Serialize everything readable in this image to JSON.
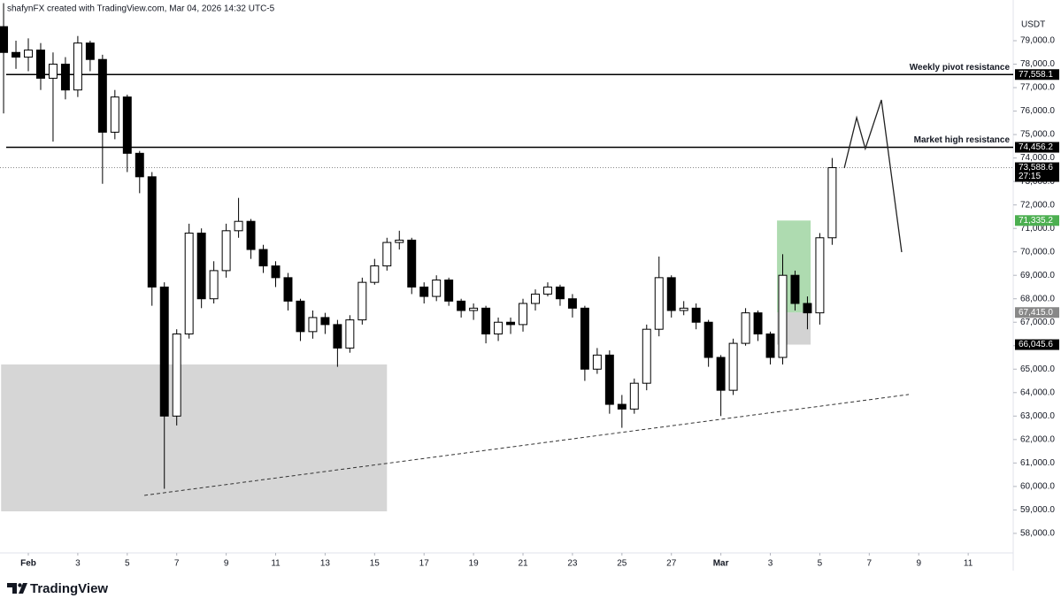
{
  "header": "shafynFX created with TradingView.com, Mar 04, 2026 14:32 UTC-5",
  "brand": "TradingView",
  "chart_data": {
    "type": "candlestick",
    "currency": "USDT",
    "xlim": [
      -1.145,
      39.82
    ],
    "ylim": [
      57167,
      80735
    ],
    "xticks": [
      {
        "value": 0,
        "label": "Feb"
      },
      {
        "value": 2,
        "label": "3"
      },
      {
        "value": 4,
        "label": "5"
      },
      {
        "value": 6,
        "label": "7"
      },
      {
        "value": 8,
        "label": "9"
      },
      {
        "value": 10,
        "label": "11"
      },
      {
        "value": 12,
        "label": "13"
      },
      {
        "value": 14,
        "label": "15"
      },
      {
        "value": 16,
        "label": "17"
      },
      {
        "value": 18,
        "label": "19"
      },
      {
        "value": 20,
        "label": "21"
      },
      {
        "value": 22,
        "label": "23"
      },
      {
        "value": 24,
        "label": "25"
      },
      {
        "value": 26,
        "label": "27"
      },
      {
        "value": 28,
        "label": "Mar"
      },
      {
        "value": 30,
        "label": "3"
      },
      {
        "value": 32,
        "label": "5"
      },
      {
        "value": 34,
        "label": "7"
      },
      {
        "value": 36,
        "label": "9"
      },
      {
        "value": 38,
        "label": "11"
      }
    ],
    "yticks": [
      {
        "value": 58000,
        "label": "58,000.0"
      },
      {
        "value": 59000,
        "label": "59,000.0"
      },
      {
        "value": 60000,
        "label": "60,000.0"
      },
      {
        "value": 61000,
        "label": "61,000.0"
      },
      {
        "value": 62000,
        "label": "62,000.0"
      },
      {
        "value": 63000,
        "label": "63,000.0"
      },
      {
        "value": 64000,
        "label": "64,000.0"
      },
      {
        "value": 65000,
        "label": "65,000.0"
      },
      {
        "value": 66000,
        "label": "66,000.0"
      },
      {
        "value": 67000,
        "label": "67,000.0"
      },
      {
        "value": 68000,
        "label": "68,000.0"
      },
      {
        "value": 69000,
        "label": "69,000.0"
      },
      {
        "value": 70000,
        "label": "70,000.0"
      },
      {
        "value": 71000,
        "label": "71,000.0"
      },
      {
        "value": 72000,
        "label": "72,000.0"
      },
      {
        "value": 73000,
        "label": "73,000.0"
      },
      {
        "value": 74000,
        "label": "74,000.0"
      },
      {
        "value": 75000,
        "label": "75,000.0"
      },
      {
        "value": 76000,
        "label": "76,000.0"
      },
      {
        "value": 77000,
        "label": "77,000.0"
      },
      {
        "value": 78000,
        "label": "78,000.0"
      },
      {
        "value": 79000,
        "label": "79,000.0"
      }
    ],
    "up_color": "#ffffff",
    "down_color": "#000000",
    "x": [
      -1,
      -0.5,
      0,
      0.5,
      1,
      1.5,
      2,
      2.5,
      3,
      3.5,
      4,
      4.5,
      5,
      5.5,
      6,
      6.5,
      7,
      7.5,
      8,
      8.5,
      9,
      9.5,
      10,
      10.5,
      11,
      11.5,
      12,
      12.5,
      13,
      13.5,
      14,
      14.5,
      15,
      15.5,
      16,
      16.5,
      17,
      17.5,
      18,
      18.5,
      19,
      19.5,
      20,
      20.5,
      21,
      21.5,
      22,
      22.5,
      23,
      23.5,
      24,
      24.5,
      25,
      25.5,
      26,
      26.5,
      27,
      27.5,
      28,
      28.5,
      29,
      29.5,
      30,
      30.5,
      31,
      31.5,
      32,
      32.5
    ],
    "open": [
      79600,
      78500,
      78300,
      78600,
      77400,
      78000,
      76900,
      78900,
      78200,
      75100,
      76600,
      74200,
      73200,
      68500,
      63000,
      66500,
      70800,
      68000,
      69200,
      70900,
      71300,
      70100,
      69400,
      68900,
      67900,
      66600,
      67200,
      66900,
      65900,
      67100,
      68700,
      69400,
      70400,
      70500,
      68500,
      68100,
      68800,
      67900,
      67500,
      67600,
      66500,
      67000,
      66900,
      67800,
      68200,
      68500,
      68000,
      67600,
      65000,
      65600,
      63500,
      63300,
      64400,
      66700,
      68900,
      67500,
      67600,
      67000,
      65500,
      64100,
      66100,
      67400,
      66500,
      65500,
      69000,
      67800,
      67400,
      70600
    ],
    "high": [
      80600,
      79000,
      79100,
      78900,
      78500,
      78300,
      79200,
      79000,
      78400,
      76900,
      76700,
      74300,
      73400,
      68700,
      66700,
      71200,
      71000,
      69600,
      71200,
      72300,
      71400,
      70300,
      69600,
      69100,
      68000,
      67500,
      67400,
      67100,
      67300,
      68900,
      69700,
      70600,
      70900,
      70600,
      68700,
      69000,
      68900,
      68000,
      67800,
      67700,
      67200,
      67200,
      68000,
      68400,
      68700,
      68600,
      68200,
      67700,
      65900,
      65800,
      63900,
      64600,
      66900,
      69800,
      69000,
      67900,
      67800,
      67100,
      65600,
      66300,
      67600,
      67500,
      66600,
      69900,
      69200,
      68100,
      70800,
      74000
    ],
    "low": [
      75900,
      77800,
      77700,
      76900,
      74700,
      76500,
      76600,
      77700,
      72900,
      74800,
      73400,
      72500,
      67700,
      59900,
      62600,
      66300,
      67600,
      67800,
      68900,
      70600,
      69700,
      69100,
      68500,
      67500,
      66200,
      66300,
      66500,
      65100,
      65700,
      66900,
      68600,
      69200,
      70100,
      68200,
      67800,
      67900,
      67700,
      67200,
      67100,
      66100,
      66200,
      66500,
      66600,
      67500,
      68100,
      67700,
      67200,
      64500,
      64800,
      63100,
      62500,
      63100,
      64100,
      66400,
      67200,
      67300,
      66700,
      65100,
      63000,
      63900,
      66000,
      66200,
      65200,
      65200,
      67500,
      66700,
      66900,
      70300
    ],
    "close": [
      78500,
      78300,
      78600,
      77400,
      78000,
      76900,
      78900,
      78200,
      75100,
      76600,
      74200,
      73200,
      68500,
      63000,
      66500,
      70800,
      68000,
      69200,
      70900,
      71300,
      70100,
      69400,
      68900,
      67900,
      66600,
      67200,
      66900,
      65900,
      67100,
      68700,
      69400,
      70400,
      70500,
      68500,
      68100,
      68800,
      67900,
      67500,
      67600,
      66500,
      67000,
      66900,
      67800,
      68200,
      68500,
      68000,
      67600,
      65000,
      65600,
      63500,
      63300,
      64400,
      66700,
      68900,
      67500,
      67600,
      67000,
      65500,
      64100,
      66100,
      67400,
      66500,
      65500,
      69000,
      67800,
      67400,
      70600,
      73588.6
    ],
    "hlines": [
      {
        "name": "Weekly pivot resistance",
        "value": 77558.1,
        "label": "77,558.1"
      },
      {
        "name": "Market high resistance",
        "value": 74456.2,
        "label": "74,456.2"
      }
    ],
    "last_price": {
      "value": 73588.6,
      "label": "73,588.6"
    },
    "countdown": "27:15",
    "zone": {
      "x": [
        -1.1,
        14.5
      ],
      "y": [
        58940,
        65200
      ],
      "color": "#d6d6d6"
    },
    "trendline": {
      "x": [
        4.69,
        35.6
      ],
      "y": [
        59620,
        63920
      ]
    },
    "projection": {
      "x": [
        32.99,
        33.49,
        33.84,
        34.49,
        35.31
      ],
      "y": [
        73570,
        75720,
        74400,
        76474,
        69988
      ]
    },
    "position": {
      "x": [
        30.27,
        31.63
      ],
      "target": {
        "value": 71335.2,
        "label": "71,335.2"
      },
      "entry": {
        "value": 67415.0,
        "label": "67,415.0"
      },
      "stop": {
        "value": 66045.6,
        "label": "66,045.6"
      },
      "profit_color": "#4caf50",
      "loss_color": "#9e9e9e"
    }
  }
}
